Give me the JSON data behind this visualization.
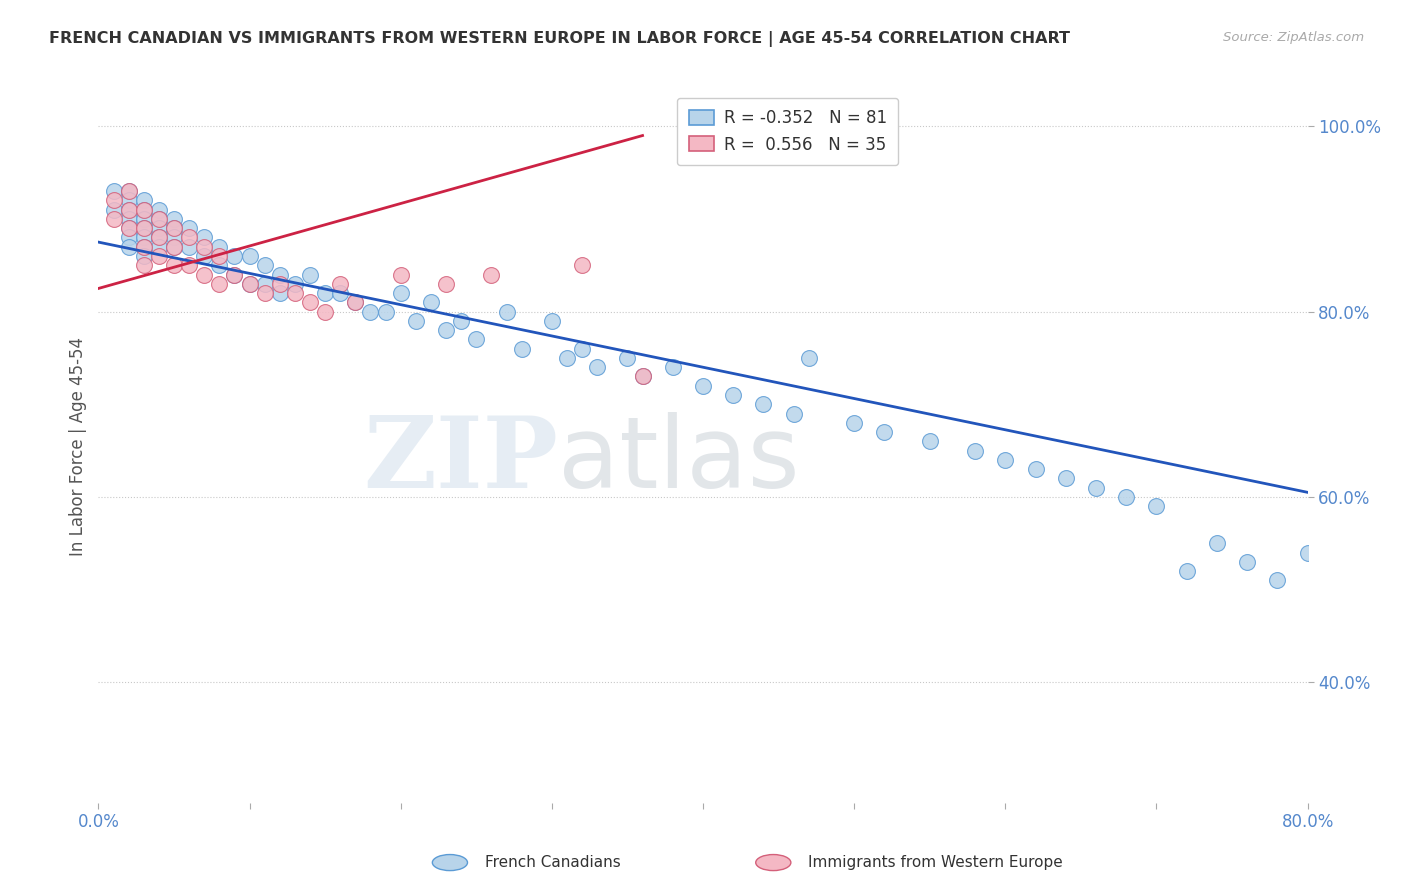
{
  "title": "FRENCH CANADIAN VS IMMIGRANTS FROM WESTERN EUROPE IN LABOR FORCE | AGE 45-54 CORRELATION CHART",
  "source": "Source: ZipAtlas.com",
  "ylabel": "In Labor Force | Age 45-54",
  "xlim": [
    0.0,
    0.8
  ],
  "ylim": [
    0.27,
    1.04
  ],
  "xticks": [
    0.0,
    0.1,
    0.2,
    0.3,
    0.4,
    0.5,
    0.6,
    0.7,
    0.8
  ],
  "yticks": [
    0.4,
    0.6,
    0.8,
    1.0
  ],
  "ytick_labels": [
    "40.0%",
    "60.0%",
    "80.0%",
    "100.0%"
  ],
  "legend_blue_r": "-0.352",
  "legend_blue_n": "81",
  "legend_pink_r": "0.556",
  "legend_pink_n": "35",
  "blue_color": "#b8d4ea",
  "blue_edge": "#5b9bd5",
  "pink_color": "#f4b8c4",
  "pink_edge": "#d4607a",
  "trendline_blue": "#2255bb",
  "trendline_pink": "#cc2244",
  "blue_scatter_x": [
    0.01,
    0.01,
    0.02,
    0.02,
    0.02,
    0.02,
    0.02,
    0.02,
    0.02,
    0.03,
    0.03,
    0.03,
    0.03,
    0.03,
    0.03,
    0.03,
    0.04,
    0.04,
    0.04,
    0.04,
    0.04,
    0.05,
    0.05,
    0.05,
    0.05,
    0.06,
    0.06,
    0.07,
    0.07,
    0.08,
    0.08,
    0.09,
    0.09,
    0.1,
    0.1,
    0.11,
    0.11,
    0.12,
    0.12,
    0.13,
    0.14,
    0.15,
    0.16,
    0.17,
    0.18,
    0.19,
    0.2,
    0.21,
    0.22,
    0.23,
    0.24,
    0.25,
    0.27,
    0.28,
    0.3,
    0.31,
    0.32,
    0.33,
    0.35,
    0.36,
    0.38,
    0.4,
    0.42,
    0.44,
    0.46,
    0.47,
    0.5,
    0.52,
    0.55,
    0.58,
    0.6,
    0.62,
    0.64,
    0.66,
    0.68,
    0.7,
    0.72,
    0.74,
    0.76,
    0.78,
    0.8
  ],
  "blue_scatter_y": [
    0.93,
    0.91,
    0.93,
    0.92,
    0.91,
    0.9,
    0.89,
    0.88,
    0.87,
    0.92,
    0.91,
    0.9,
    0.89,
    0.88,
    0.87,
    0.86,
    0.91,
    0.9,
    0.89,
    0.88,
    0.87,
    0.9,
    0.89,
    0.88,
    0.87,
    0.89,
    0.87,
    0.88,
    0.86,
    0.87,
    0.85,
    0.86,
    0.84,
    0.86,
    0.83,
    0.85,
    0.83,
    0.84,
    0.82,
    0.83,
    0.84,
    0.82,
    0.82,
    0.81,
    0.8,
    0.8,
    0.82,
    0.79,
    0.81,
    0.78,
    0.79,
    0.77,
    0.8,
    0.76,
    0.79,
    0.75,
    0.76,
    0.74,
    0.75,
    0.73,
    0.74,
    0.72,
    0.71,
    0.7,
    0.69,
    0.75,
    0.68,
    0.67,
    0.66,
    0.65,
    0.64,
    0.63,
    0.62,
    0.61,
    0.6,
    0.59,
    0.52,
    0.55,
    0.53,
    0.51,
    0.54
  ],
  "pink_scatter_x": [
    0.01,
    0.01,
    0.02,
    0.02,
    0.02,
    0.03,
    0.03,
    0.03,
    0.03,
    0.04,
    0.04,
    0.04,
    0.05,
    0.05,
    0.05,
    0.06,
    0.06,
    0.07,
    0.07,
    0.08,
    0.08,
    0.09,
    0.1,
    0.11,
    0.12,
    0.13,
    0.14,
    0.15,
    0.16,
    0.17,
    0.2,
    0.23,
    0.26,
    0.32,
    0.36
  ],
  "pink_scatter_y": [
    0.92,
    0.9,
    0.93,
    0.91,
    0.89,
    0.91,
    0.89,
    0.87,
    0.85,
    0.9,
    0.88,
    0.86,
    0.89,
    0.87,
    0.85,
    0.88,
    0.85,
    0.87,
    0.84,
    0.86,
    0.83,
    0.84,
    0.83,
    0.82,
    0.83,
    0.82,
    0.81,
    0.8,
    0.83,
    0.81,
    0.84,
    0.83,
    0.84,
    0.85,
    0.73
  ],
  "blue_trendline_x0": 0.0,
  "blue_trendline_y0": 0.875,
  "blue_trendline_x1": 0.8,
  "blue_trendline_y1": 0.605,
  "pink_trendline_x0": 0.0,
  "pink_trendline_y0": 0.825,
  "pink_trendline_x1": 0.36,
  "pink_trendline_y1": 0.99
}
